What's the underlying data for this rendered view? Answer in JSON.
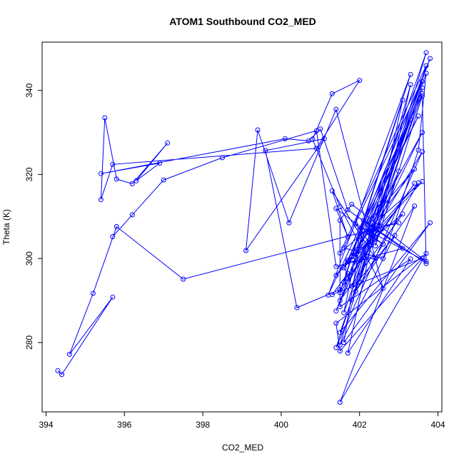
{
  "chart_data": {
    "type": "line",
    "title": "ATOM1 Southbound CO2_MED",
    "xlabel": "CO2_MED",
    "ylabel": "Theta (K)",
    "xlim": [
      393.9,
      404.1
    ],
    "ylim": [
      263.5,
      351.5
    ],
    "x_ticks": [
      394,
      396,
      398,
      400,
      402,
      404
    ],
    "y_ticks": [
      280,
      300,
      320,
      340
    ],
    "grid": false,
    "legend": "none",
    "series": [
      {
        "color": "#0000ff",
        "x": [
          394.3,
          394.4,
          395.7,
          394.6,
          395.2,
          395.8,
          397.5,
          403.0,
          402.3,
          401.6,
          401.7,
          401.3,
          403.6,
          401.5,
          401.4,
          403.7,
          401.5,
          403.4,
          401.9,
          403.5,
          401.8,
          403.1,
          401.5,
          403.6,
          402.2,
          403.6,
          401.6,
          402.6,
          403.5,
          403.7,
          401.8,
          403.3,
          401.7,
          402.0,
          401.6,
          403.6,
          401.2,
          403.3,
          401.5,
          403.4,
          401.7,
          403.7,
          401.5,
          402.9,
          401.9,
          403.3,
          402.4,
          403.6,
          403.7,
          402.1,
          401.6,
          403.8,
          401.5,
          403.0,
          401.4,
          403.6,
          402.0,
          402.5,
          402.2,
          403.4,
          401.4,
          402.5,
          401.9,
          403.8,
          401.7,
          402.4,
          401.3,
          401.7,
          401.4,
          402.6,
          402.0,
          403.5,
          401.6,
          403.6,
          401.5,
          403.7,
          401.8,
          401.4,
          403.6,
          401.6,
          403.1,
          401.7,
          403.3,
          401.5,
          401.5,
          401.8,
          403.7,
          401.9,
          402.3,
          401.5,
          400.4,
          399.6,
          401.1,
          399.1,
          399.4,
          400.2,
          401.4,
          402.6,
          401.5,
          400.8,
          401.3,
          402.0,
          400.9,
          395.7,
          395.4,
          395.5,
          395.8,
          396.2,
          397.1,
          396.3,
          396.9,
          395.4,
          400.1,
          400.7,
          401.0,
          401.7,
          403.1,
          401.4,
          400.9,
          398.5,
          397.0,
          396.2,
          395.7
        ],
        "y": [
          273.3,
          272.4,
          290.8,
          277.2,
          291.7,
          307.6,
          295.1,
          308.5,
          307.3,
          297.8,
          296.4,
          291.4,
          300.1,
          278.0,
          284.6,
          301.2,
          265.8,
          312.5,
          292.2,
          318.0,
          300.4,
          310.6,
          290.0,
          330.0,
          306.3,
          342.1,
          302.5,
          300.0,
          325.8,
          344.1,
          293.4,
          333.0,
          299.6,
          305.3,
          287.1,
          339.2,
          291.3,
          343.8,
          291.9,
          317.9,
          295.2,
          349.0,
          279.4,
          305.5,
          293.8,
          341.4,
          303.0,
          338.7,
          298.8,
          309.1,
          280.0,
          308.5,
          282.4,
          320.8,
          287.5,
          340.6,
          294.4,
          313.0,
          308.2,
          321.3,
          296.0,
          306.8,
          300.3,
          347.6,
          299.2,
          300.1,
          316.1,
          305.2,
          311.9,
          303.4,
          306.9,
          333.9,
          297.8,
          318.3,
          301.3,
          345.9,
          290.2,
          278.8,
          325.4,
          294.4,
          337.7,
          277.5,
          299.9,
          288.5,
          309.1,
          312.9,
          299.3,
          308.2,
          303.2,
          292.6,
          288.3,
          325.7,
          328.5,
          301.9,
          330.6,
          308.5,
          335.5,
          292.9,
          312.3,
          328.4,
          339.2,
          342.4,
          326.2,
          322.4,
          314.0,
          333.5,
          318.9,
          317.8,
          327.5,
          318.5,
          322.7,
          320.2,
          328.5,
          328.0,
          330.8,
          311.6,
          302.4,
          298.1,
          330.4,
          324.0,
          318.7,
          310.4,
          305.2
        ]
      }
    ]
  }
}
